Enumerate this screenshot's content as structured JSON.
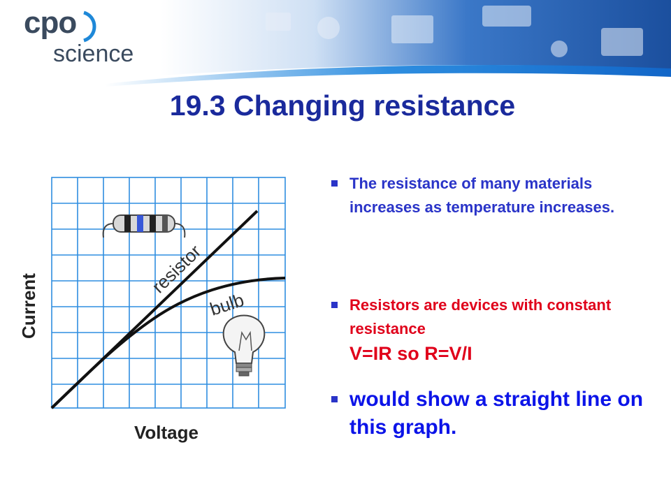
{
  "logo": {
    "line1": "cpo",
    "line2": "science"
  },
  "slide": {
    "title": "19.3 Changing resistance"
  },
  "graph": {
    "xlabel": "Voltage",
    "ylabel": "Current",
    "resistor_label": "resistor",
    "bulb_label": "bulb"
  },
  "bullets": [
    {
      "text": "The resistance of many materials increases as temperature increases."
    },
    {
      "text": "Resistors are devices with constant resistance",
      "equation": "V=IR so R=V/I"
    },
    {
      "text": "would show a straight line on this graph."
    }
  ],
  "colors": {
    "title": "#1a2a9c",
    "bullet_blue": "#2a34c8",
    "bullet_red": "#e0001a",
    "bullet_bright_blue": "#0c14e8",
    "grid": "#2f8de0",
    "banner": "#1f5fae"
  }
}
